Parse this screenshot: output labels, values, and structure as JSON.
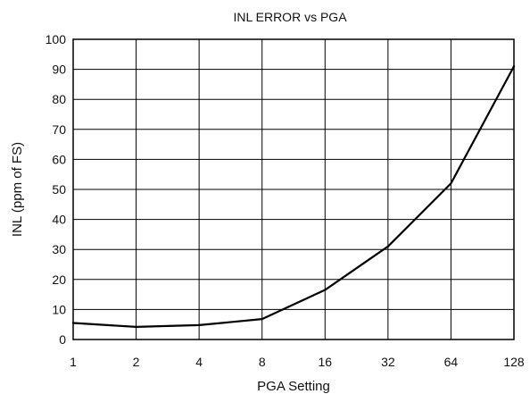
{
  "chart_data": {
    "type": "line",
    "title": "INL ERROR vs PGA",
    "xlabel": "PGA Setting",
    "ylabel": "INL  (ppm of FS)",
    "categories": [
      "1",
      "2",
      "4",
      "8",
      "16",
      "32",
      "64",
      "128"
    ],
    "ylim": [
      0,
      100
    ],
    "yticks": [
      0,
      10,
      20,
      30,
      40,
      50,
      60,
      70,
      80,
      90,
      100
    ],
    "grid": true,
    "legend": "none",
    "series": [
      {
        "values": [
          5.5,
          4.2,
          4.8,
          6.8,
          16.5,
          31,
          52,
          91
        ],
        "color": "#000000"
      }
    ]
  }
}
